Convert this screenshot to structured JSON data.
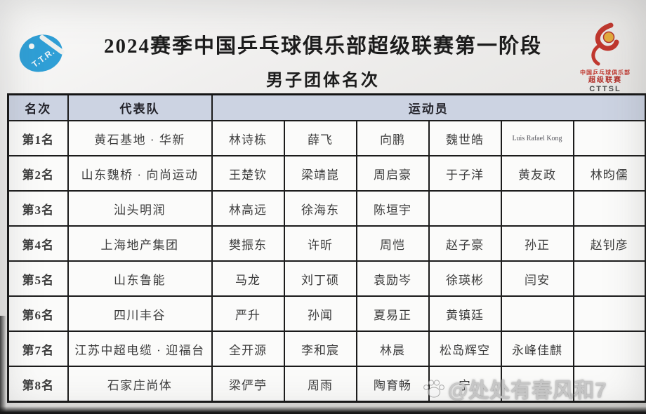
{
  "page": {
    "title": "2024赛季中国乒乓球俱乐部超级联赛第一阶段",
    "subtitle": "男子团体名次"
  },
  "logos": {
    "left": {
      "label": "T.T.R.",
      "color": "#2f9fd6"
    },
    "right": {
      "line1": "中国乒乓球俱乐部",
      "line2": "超级联赛",
      "line3": "CTTSL",
      "color": "#c0372e"
    }
  },
  "colors": {
    "header_bg": "#ccd3e2",
    "table_border": "#1b1b1b",
    "logo_blue": "#2f9fd6",
    "logo_red": "#c0372e",
    "ball_yellow": "#e2aa3c"
  },
  "table": {
    "headers": {
      "rank": "名次",
      "team": "代表队",
      "players": "运动员"
    },
    "rows": [
      {
        "rank": "第1名",
        "team": "黄石基地 · 华新",
        "players": [
          "林诗栋",
          "薛飞",
          "向鹏",
          "魏世皓",
          "Luis Rafael Kong",
          ""
        ]
      },
      {
        "rank": "第2名",
        "team": "山东魏桥 · 向尚运动",
        "players": [
          "王楚钦",
          "梁靖崑",
          "周启豪",
          "于子洋",
          "黄友政",
          "林昀儒"
        ]
      },
      {
        "rank": "第3名",
        "team": "汕头明润",
        "players": [
          "林高远",
          "徐海东",
          "陈垣宇",
          "",
          "",
          ""
        ]
      },
      {
        "rank": "第4名",
        "team": "上海地产集团",
        "players": [
          "樊振东",
          "许昕",
          "周恺",
          "赵子豪",
          "孙正",
          "赵钊彦"
        ]
      },
      {
        "rank": "第5名",
        "team": "山东鲁能",
        "players": [
          "马龙",
          "刘丁硕",
          "袁励岑",
          "徐瑛彬",
          "闫安",
          ""
        ]
      },
      {
        "rank": "第6名",
        "team": "四川丰谷",
        "players": [
          "严升",
          "孙闻",
          "夏易正",
          "黄镇廷",
          "",
          ""
        ]
      },
      {
        "rank": "第7名",
        "team": "江苏中超电缆 · 迎福台",
        "players": [
          "全开源",
          "李和宸",
          "林晨",
          "松岛辉空",
          "永峰佳麒",
          ""
        ]
      },
      {
        "rank": "第8名",
        "team": "石家庄尚体",
        "players": [
          "梁俨苧",
          "周雨",
          "陶育畅",
          "宁",
          "",
          ""
        ]
      }
    ]
  },
  "watermark": {
    "handle": "@处处有春风和7"
  }
}
